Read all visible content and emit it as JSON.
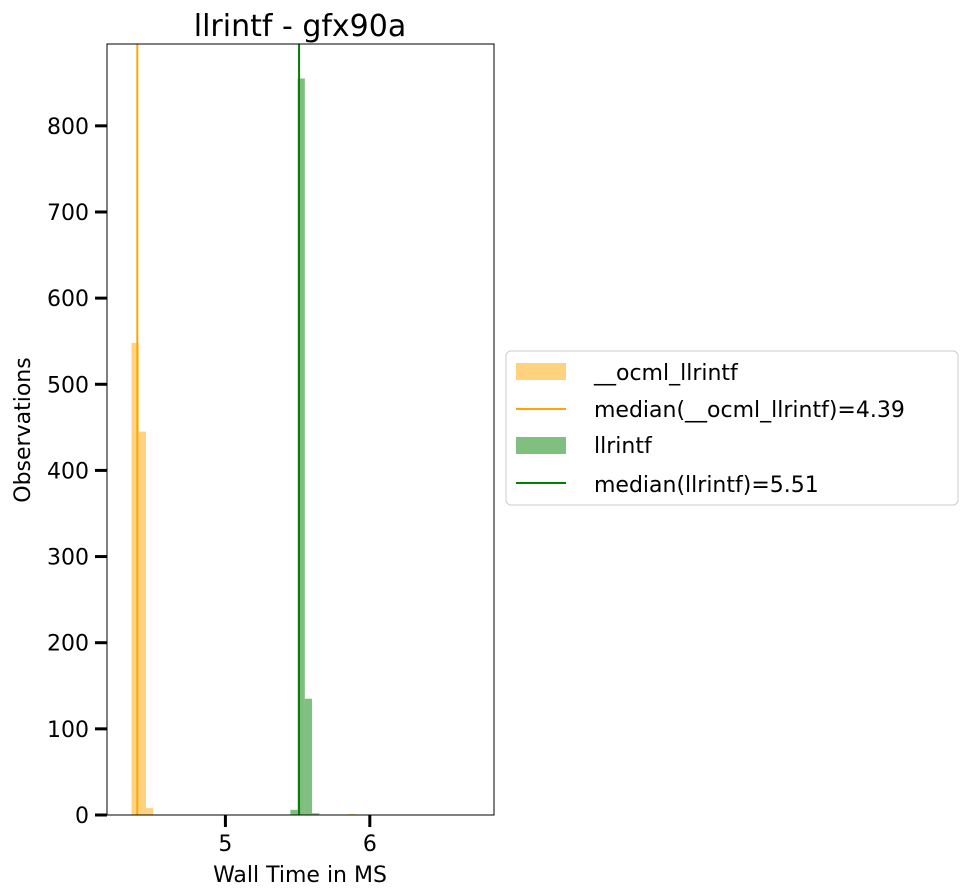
{
  "chart_data": {
    "type": "bar",
    "title": "llrintf - gfx90a",
    "xlabel": "Wall Time in MS",
    "ylabel": "Observations",
    "xlim": [
      4.18,
      6.86
    ],
    "ylim": [
      0,
      895
    ],
    "x_ticks": [
      5,
      6
    ],
    "y_ticks": [
      0,
      100,
      200,
      300,
      400,
      500,
      600,
      700,
      800
    ],
    "legend_position": "center-right-outside",
    "series": [
      {
        "name": "__ocml_llrintf",
        "kind": "histogram",
        "color": "#ffa500",
        "opacity": 0.5,
        "bins": [
          {
            "x0": 4.35,
            "x1": 4.4,
            "count": 548
          },
          {
            "x0": 4.4,
            "x1": 4.45,
            "count": 445
          },
          {
            "x0": 4.45,
            "x1": 4.5,
            "count": 8
          },
          {
            "x0": 5.85,
            "x1": 5.9,
            "count": 1
          }
        ]
      },
      {
        "name": "median(__ocml_llrintf)=4.39",
        "kind": "vline",
        "color": "#ffa500",
        "x": 4.39
      },
      {
        "name": "llrintf",
        "kind": "histogram",
        "color": "#008000",
        "opacity": 0.5,
        "bins": [
          {
            "x0": 5.45,
            "x1": 5.5,
            "count": 6
          },
          {
            "x0": 5.5,
            "x1": 5.55,
            "count": 855
          },
          {
            "x0": 5.55,
            "x1": 5.6,
            "count": 135
          },
          {
            "x0": 5.6,
            "x1": 5.65,
            "count": 2
          }
        ]
      },
      {
        "name": "median(llrintf)=5.51",
        "kind": "vline",
        "color": "#008000",
        "x": 5.51
      }
    ]
  }
}
